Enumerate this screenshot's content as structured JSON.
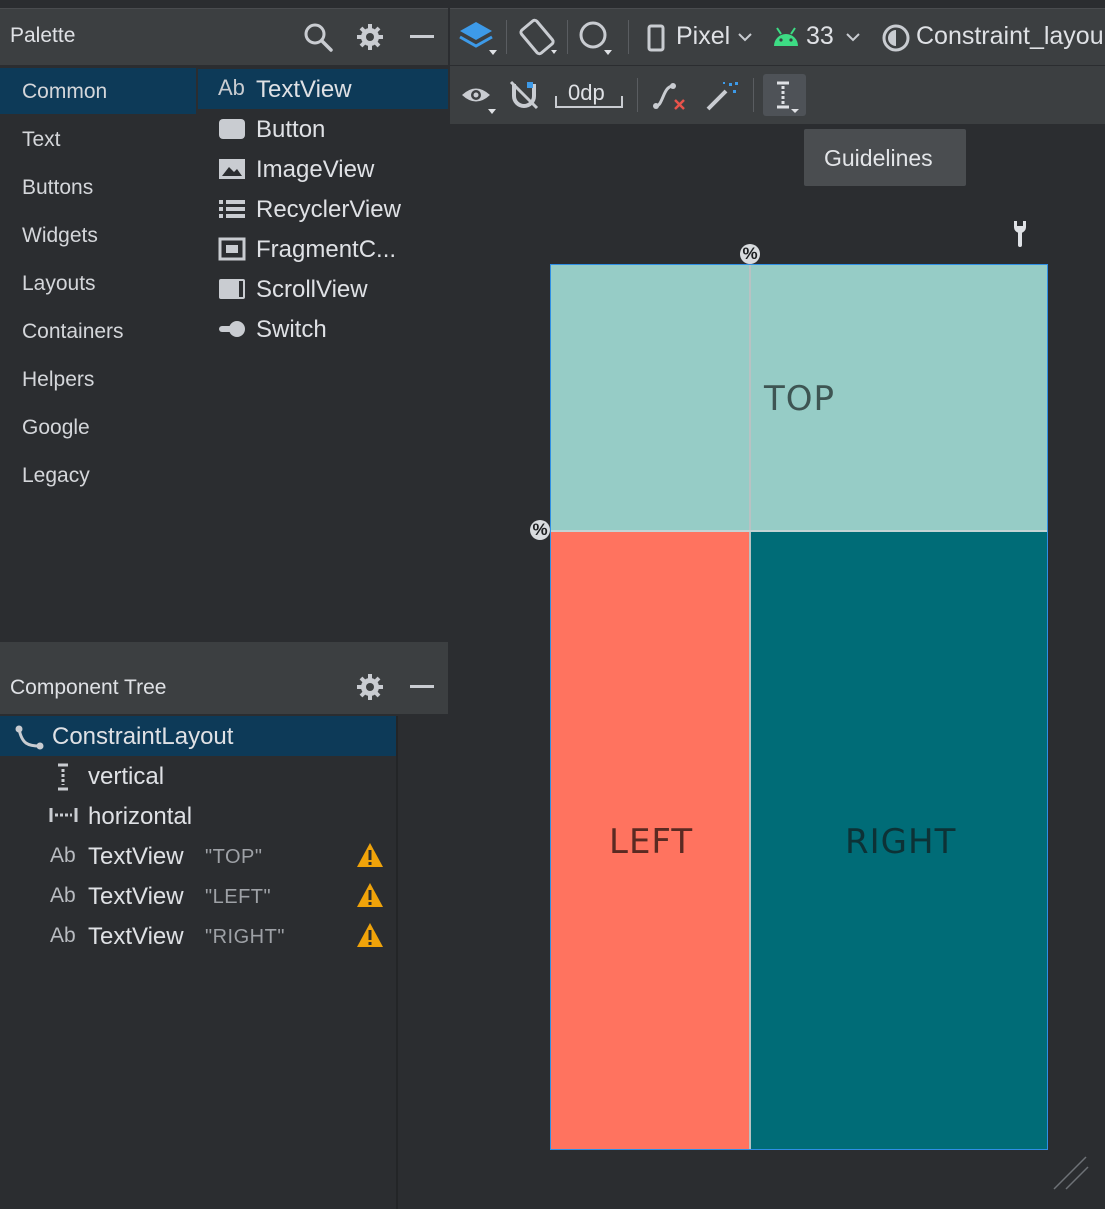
{
  "palette": {
    "title": "Palette",
    "categories": [
      "Common",
      "Text",
      "Buttons",
      "Widgets",
      "Layouts",
      "Containers",
      "Helpers",
      "Google",
      "Legacy"
    ],
    "selected_category": "Common",
    "items": [
      {
        "icon": "ab-text-icon",
        "label": "TextView"
      },
      {
        "icon": "button-icon",
        "label": "Button"
      },
      {
        "icon": "image-icon",
        "label": "ImageView"
      },
      {
        "icon": "list-icon",
        "label": "RecyclerView"
      },
      {
        "icon": "fragment-icon",
        "label": "FragmentC..."
      },
      {
        "icon": "scroll-icon",
        "label": "ScrollView"
      },
      {
        "icon": "switch-icon",
        "label": "Switch"
      }
    ],
    "ab": "Ab"
  },
  "tree": {
    "title": "Component Tree",
    "rows": [
      {
        "label": "ConstraintLayout",
        "quote": ""
      },
      {
        "label": "vertical",
        "quote": ""
      },
      {
        "label": "horizontal",
        "quote": ""
      },
      {
        "label": "TextView",
        "quote": "\"TOP\""
      },
      {
        "label": "TextView",
        "quote": "\"LEFT\""
      },
      {
        "label": "TextView",
        "quote": "\"RIGHT\""
      }
    ]
  },
  "toolbar": {
    "device": "Pixel",
    "api": "33",
    "theme": "Constraint_layou",
    "margin": "0dp"
  },
  "tooltip": "Guidelines",
  "canvas": {
    "top": "TOP",
    "left": "LEFT",
    "right": "RIGHT",
    "percent": "%"
  },
  "colors": {
    "top": "#96ccc6",
    "left": "#ff735f",
    "right": "#006c77",
    "selection": "#0d3a58",
    "warning": "#f0a30a"
  }
}
